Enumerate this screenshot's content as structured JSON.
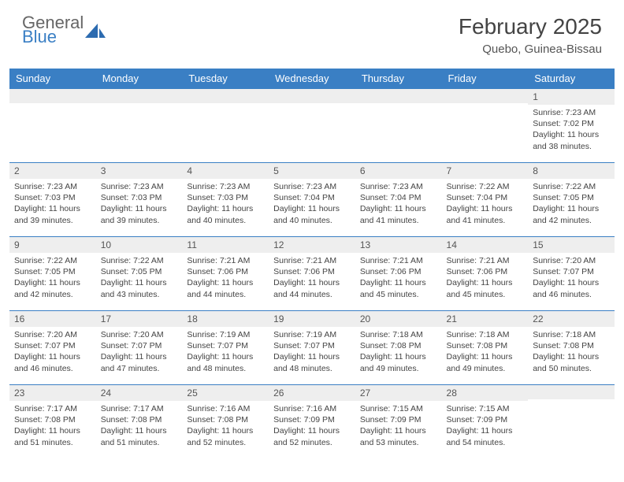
{
  "brand": {
    "line1": "General",
    "line2": "Blue",
    "glyph_color": "#2c6bb0"
  },
  "title": "February 2025",
  "location": "Quebo, Guinea-Bissau",
  "colors": {
    "header_bg": "#3a7fc4",
    "header_text": "#ffffff",
    "daynum_bg": "#eeeeee",
    "border": "#3a7fc4",
    "body_text": "#444444"
  },
  "daysOfWeek": [
    "Sunday",
    "Monday",
    "Tuesday",
    "Wednesday",
    "Thursday",
    "Friday",
    "Saturday"
  ],
  "weeks": [
    [
      {
        "n": "",
        "sr": "",
        "ss": "",
        "dl": ""
      },
      {
        "n": "",
        "sr": "",
        "ss": "",
        "dl": ""
      },
      {
        "n": "",
        "sr": "",
        "ss": "",
        "dl": ""
      },
      {
        "n": "",
        "sr": "",
        "ss": "",
        "dl": ""
      },
      {
        "n": "",
        "sr": "",
        "ss": "",
        "dl": ""
      },
      {
        "n": "",
        "sr": "",
        "ss": "",
        "dl": ""
      },
      {
        "n": "1",
        "sr": "Sunrise: 7:23 AM",
        "ss": "Sunset: 7:02 PM",
        "dl": "Daylight: 11 hours and 38 minutes."
      }
    ],
    [
      {
        "n": "2",
        "sr": "Sunrise: 7:23 AM",
        "ss": "Sunset: 7:03 PM",
        "dl": "Daylight: 11 hours and 39 minutes."
      },
      {
        "n": "3",
        "sr": "Sunrise: 7:23 AM",
        "ss": "Sunset: 7:03 PM",
        "dl": "Daylight: 11 hours and 39 minutes."
      },
      {
        "n": "4",
        "sr": "Sunrise: 7:23 AM",
        "ss": "Sunset: 7:03 PM",
        "dl": "Daylight: 11 hours and 40 minutes."
      },
      {
        "n": "5",
        "sr": "Sunrise: 7:23 AM",
        "ss": "Sunset: 7:04 PM",
        "dl": "Daylight: 11 hours and 40 minutes."
      },
      {
        "n": "6",
        "sr": "Sunrise: 7:23 AM",
        "ss": "Sunset: 7:04 PM",
        "dl": "Daylight: 11 hours and 41 minutes."
      },
      {
        "n": "7",
        "sr": "Sunrise: 7:22 AM",
        "ss": "Sunset: 7:04 PM",
        "dl": "Daylight: 11 hours and 41 minutes."
      },
      {
        "n": "8",
        "sr": "Sunrise: 7:22 AM",
        "ss": "Sunset: 7:05 PM",
        "dl": "Daylight: 11 hours and 42 minutes."
      }
    ],
    [
      {
        "n": "9",
        "sr": "Sunrise: 7:22 AM",
        "ss": "Sunset: 7:05 PM",
        "dl": "Daylight: 11 hours and 42 minutes."
      },
      {
        "n": "10",
        "sr": "Sunrise: 7:22 AM",
        "ss": "Sunset: 7:05 PM",
        "dl": "Daylight: 11 hours and 43 minutes."
      },
      {
        "n": "11",
        "sr": "Sunrise: 7:21 AM",
        "ss": "Sunset: 7:06 PM",
        "dl": "Daylight: 11 hours and 44 minutes."
      },
      {
        "n": "12",
        "sr": "Sunrise: 7:21 AM",
        "ss": "Sunset: 7:06 PM",
        "dl": "Daylight: 11 hours and 44 minutes."
      },
      {
        "n": "13",
        "sr": "Sunrise: 7:21 AM",
        "ss": "Sunset: 7:06 PM",
        "dl": "Daylight: 11 hours and 45 minutes."
      },
      {
        "n": "14",
        "sr": "Sunrise: 7:21 AM",
        "ss": "Sunset: 7:06 PM",
        "dl": "Daylight: 11 hours and 45 minutes."
      },
      {
        "n": "15",
        "sr": "Sunrise: 7:20 AM",
        "ss": "Sunset: 7:07 PM",
        "dl": "Daylight: 11 hours and 46 minutes."
      }
    ],
    [
      {
        "n": "16",
        "sr": "Sunrise: 7:20 AM",
        "ss": "Sunset: 7:07 PM",
        "dl": "Daylight: 11 hours and 46 minutes."
      },
      {
        "n": "17",
        "sr": "Sunrise: 7:20 AM",
        "ss": "Sunset: 7:07 PM",
        "dl": "Daylight: 11 hours and 47 minutes."
      },
      {
        "n": "18",
        "sr": "Sunrise: 7:19 AM",
        "ss": "Sunset: 7:07 PM",
        "dl": "Daylight: 11 hours and 48 minutes."
      },
      {
        "n": "19",
        "sr": "Sunrise: 7:19 AM",
        "ss": "Sunset: 7:07 PM",
        "dl": "Daylight: 11 hours and 48 minutes."
      },
      {
        "n": "20",
        "sr": "Sunrise: 7:18 AM",
        "ss": "Sunset: 7:08 PM",
        "dl": "Daylight: 11 hours and 49 minutes."
      },
      {
        "n": "21",
        "sr": "Sunrise: 7:18 AM",
        "ss": "Sunset: 7:08 PM",
        "dl": "Daylight: 11 hours and 49 minutes."
      },
      {
        "n": "22",
        "sr": "Sunrise: 7:18 AM",
        "ss": "Sunset: 7:08 PM",
        "dl": "Daylight: 11 hours and 50 minutes."
      }
    ],
    [
      {
        "n": "23",
        "sr": "Sunrise: 7:17 AM",
        "ss": "Sunset: 7:08 PM",
        "dl": "Daylight: 11 hours and 51 minutes."
      },
      {
        "n": "24",
        "sr": "Sunrise: 7:17 AM",
        "ss": "Sunset: 7:08 PM",
        "dl": "Daylight: 11 hours and 51 minutes."
      },
      {
        "n": "25",
        "sr": "Sunrise: 7:16 AM",
        "ss": "Sunset: 7:08 PM",
        "dl": "Daylight: 11 hours and 52 minutes."
      },
      {
        "n": "26",
        "sr": "Sunrise: 7:16 AM",
        "ss": "Sunset: 7:09 PM",
        "dl": "Daylight: 11 hours and 52 minutes."
      },
      {
        "n": "27",
        "sr": "Sunrise: 7:15 AM",
        "ss": "Sunset: 7:09 PM",
        "dl": "Daylight: 11 hours and 53 minutes."
      },
      {
        "n": "28",
        "sr": "Sunrise: 7:15 AM",
        "ss": "Sunset: 7:09 PM",
        "dl": "Daylight: 11 hours and 54 minutes."
      },
      {
        "n": "",
        "sr": "",
        "ss": "",
        "dl": ""
      }
    ]
  ]
}
